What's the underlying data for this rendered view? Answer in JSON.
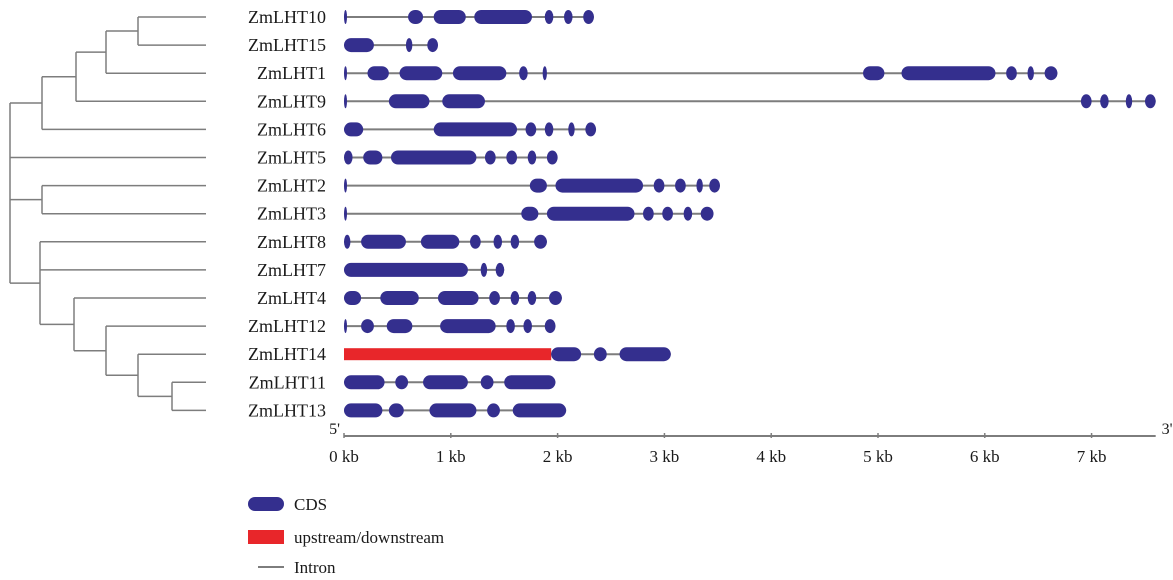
{
  "colors": {
    "cds": "#342f8e",
    "upstream": "#e8262a",
    "intron": "#7d7d7d",
    "tree": "#7d7d7d",
    "axis": "#7d7d7d",
    "text": "#1a1a1a"
  },
  "axis": {
    "unit": "kb",
    "min": 0,
    "max": 7.6,
    "ticks": [
      {
        "value": 0,
        "label": "0 kb"
      },
      {
        "value": 1,
        "label": "1 kb"
      },
      {
        "value": 2,
        "label": "2 kb"
      },
      {
        "value": 3,
        "label": "3 kb"
      },
      {
        "value": 4,
        "label": "4 kb"
      },
      {
        "value": 5,
        "label": "5 kb"
      },
      {
        "value": 6,
        "label": "6 kb"
      },
      {
        "value": 7,
        "label": "7 kb"
      }
    ],
    "start_label": "5'",
    "end_label": "3'"
  },
  "legend": [
    {
      "type": "cds",
      "label": "CDS"
    },
    {
      "type": "upstream",
      "label": "upstream/downstream"
    },
    {
      "type": "intron",
      "label": "Intron"
    }
  ],
  "genes": [
    {
      "name": "ZmLHT10",
      "length": 2.34,
      "cds": [
        [
          0,
          0.02
        ],
        [
          0.6,
          0.74
        ],
        [
          0.84,
          1.14
        ],
        [
          1.22,
          1.76
        ],
        [
          1.88,
          1.96
        ],
        [
          2.06,
          2.14
        ],
        [
          2.24,
          2.34
        ]
      ],
      "upstream": []
    },
    {
      "name": "ZmLHT15",
      "length": 0.88,
      "cds": [
        [
          0,
          0.28
        ],
        [
          0.58,
          0.64
        ],
        [
          0.78,
          0.88
        ]
      ],
      "upstream": []
    },
    {
      "name": "ZmLHT1",
      "length": 6.68,
      "cds": [
        [
          0,
          0.02
        ],
        [
          0.22,
          0.42
        ],
        [
          0.52,
          0.92
        ],
        [
          1.02,
          1.52
        ],
        [
          1.64,
          1.72
        ],
        [
          1.86,
          1.9
        ],
        [
          4.86,
          5.06
        ],
        [
          5.22,
          6.1
        ],
        [
          6.2,
          6.3
        ],
        [
          6.4,
          6.46
        ],
        [
          6.56,
          6.68
        ]
      ],
      "upstream": []
    },
    {
      "name": "ZmLHT9",
      "length": 7.6,
      "cds": [
        [
          0,
          0.02
        ],
        [
          0.42,
          0.8
        ],
        [
          0.92,
          1.32
        ],
        [
          6.9,
          7.0
        ],
        [
          7.08,
          7.16
        ],
        [
          7.32,
          7.38
        ],
        [
          7.5,
          7.6
        ]
      ],
      "upstream": []
    },
    {
      "name": "ZmLHT6",
      "length": 2.36,
      "cds": [
        [
          0,
          0.18
        ],
        [
          0.84,
          1.62
        ],
        [
          1.7,
          1.8
        ],
        [
          1.88,
          1.96
        ],
        [
          2.1,
          2.16
        ],
        [
          2.26,
          2.36
        ]
      ],
      "upstream": []
    },
    {
      "name": "ZmLHT5",
      "length": 2.0,
      "cds": [
        [
          0,
          0.08
        ],
        [
          0.18,
          0.36
        ],
        [
          0.44,
          1.24
        ],
        [
          1.32,
          1.42
        ],
        [
          1.52,
          1.62
        ],
        [
          1.72,
          1.8
        ],
        [
          1.9,
          2.0
        ]
      ],
      "upstream": []
    },
    {
      "name": "ZmLHT2",
      "length": 3.52,
      "cds": [
        [
          0,
          0.02
        ],
        [
          1.74,
          1.9
        ],
        [
          1.98,
          2.8
        ],
        [
          2.9,
          3.0
        ],
        [
          3.1,
          3.2
        ],
        [
          3.3,
          3.36
        ],
        [
          3.42,
          3.52
        ]
      ],
      "upstream": []
    },
    {
      "name": "ZmLHT3",
      "length": 3.46,
      "cds": [
        [
          0,
          0.02
        ],
        [
          1.66,
          1.82
        ],
        [
          1.9,
          2.72
        ],
        [
          2.8,
          2.9
        ],
        [
          2.98,
          3.08
        ],
        [
          3.18,
          3.26
        ],
        [
          3.34,
          3.46
        ]
      ],
      "upstream": []
    },
    {
      "name": "ZmLHT8",
      "length": 1.9,
      "cds": [
        [
          0,
          0.06
        ],
        [
          0.16,
          0.58
        ],
        [
          0.72,
          1.08
        ],
        [
          1.18,
          1.28
        ],
        [
          1.4,
          1.48
        ],
        [
          1.56,
          1.64
        ],
        [
          1.78,
          1.9
        ]
      ],
      "upstream": []
    },
    {
      "name": "ZmLHT7",
      "length": 1.5,
      "cds": [
        [
          0,
          1.16
        ],
        [
          1.28,
          1.34
        ],
        [
          1.42,
          1.5
        ]
      ],
      "upstream": []
    },
    {
      "name": "ZmLHT4",
      "length": 2.04,
      "cds": [
        [
          0,
          0.16
        ],
        [
          0.34,
          0.7
        ],
        [
          0.88,
          1.26
        ],
        [
          1.36,
          1.46
        ],
        [
          1.56,
          1.64
        ],
        [
          1.72,
          1.8
        ],
        [
          1.92,
          2.04
        ]
      ],
      "upstream": []
    },
    {
      "name": "ZmLHT12",
      "length": 1.98,
      "cds": [
        [
          0,
          0.02
        ],
        [
          0.16,
          0.28
        ],
        [
          0.4,
          0.64
        ],
        [
          0.9,
          1.42
        ],
        [
          1.52,
          1.6
        ],
        [
          1.68,
          1.76
        ],
        [
          1.88,
          1.98
        ]
      ],
      "upstream": []
    },
    {
      "name": "ZmLHT14",
      "length": 3.06,
      "cds": [
        [
          1.94,
          2.22
        ],
        [
          2.34,
          2.46
        ],
        [
          2.58,
          3.06
        ]
      ],
      "upstream": [
        [
          0,
          1.94
        ]
      ]
    },
    {
      "name": "ZmLHT11",
      "length": 1.98,
      "cds": [
        [
          0,
          0.38
        ],
        [
          0.48,
          0.6
        ],
        [
          0.74,
          1.16
        ],
        [
          1.28,
          1.4
        ],
        [
          1.5,
          1.98
        ]
      ],
      "upstream": []
    },
    {
      "name": "ZmLHT13",
      "length": 2.08,
      "cds": [
        [
          0,
          0.36
        ],
        [
          0.42,
          0.56
        ],
        [
          0.8,
          1.24
        ],
        [
          1.34,
          1.46
        ],
        [
          1.58,
          2.08
        ]
      ],
      "upstream": []
    }
  ]
}
